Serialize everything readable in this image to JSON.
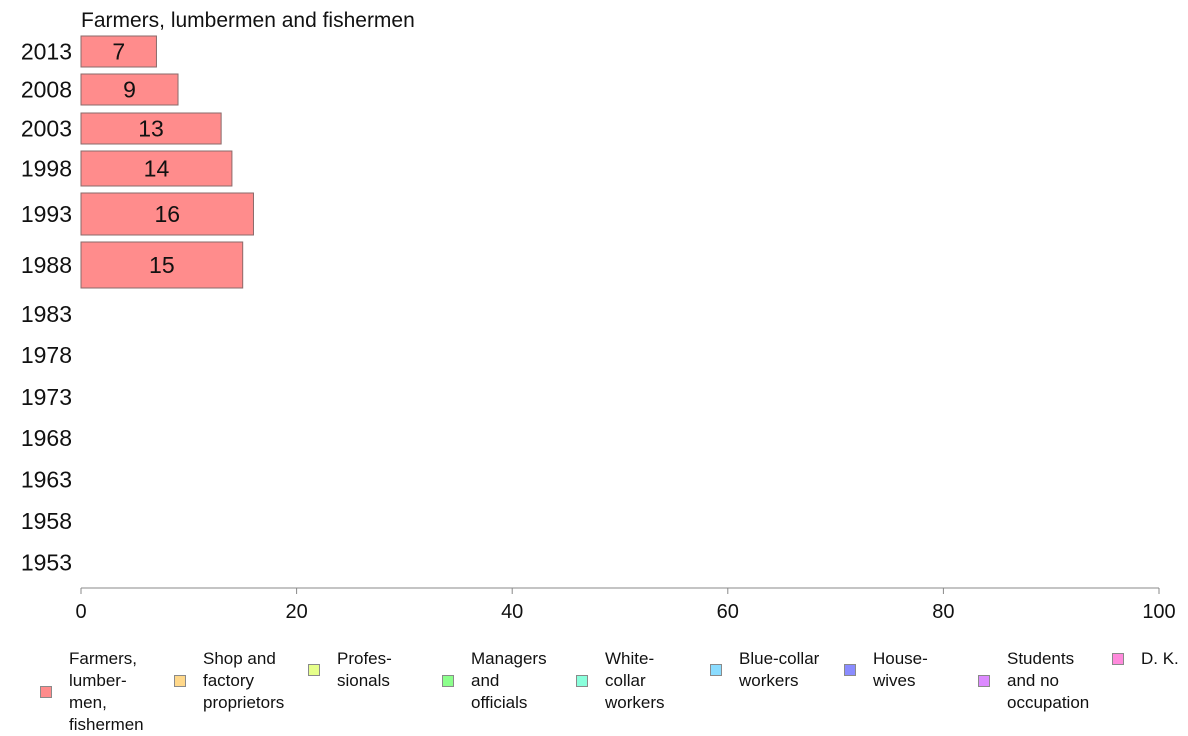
{
  "chart_data": {
    "type": "bar",
    "orientation": "horizontal",
    "title": "Farmers, lumbermen and fishermen",
    "xlim": [
      0,
      100
    ],
    "x_ticks": [
      "0",
      "20",
      "40",
      "60",
      "80",
      "100"
    ],
    "categories": [
      "2013",
      "2008",
      "2003",
      "1998",
      "1993",
      "1988",
      "1983",
      "1978",
      "1973",
      "1968",
      "1963",
      "1958",
      "1953"
    ],
    "series": [
      {
        "name": "Farmers, lumbermen, fishermen",
        "color": "#ff8c8c",
        "values": [
          7,
          9,
          13,
          14,
          16,
          15,
          null,
          null,
          null,
          null,
          null,
          null,
          null
        ],
        "value_labels": [
          "7",
          "9",
          "13",
          "14",
          "16",
          "15",
          "",
          "",
          "",
          "",
          "",
          "",
          ""
        ]
      }
    ],
    "grid": false,
    "legend_position": "bottom"
  },
  "legend": [
    {
      "label": "Farmers,\nlumber-\nmen,\nfishermen",
      "color": "#ff8c8c"
    },
    {
      "label": "Shop and\nfactory\nproprietors",
      "color": "#ffd88a"
    },
    {
      "label": "Profes-\nsionals",
      "color": "#e6ff8a"
    },
    {
      "label": "Managers\nand\nofficials",
      "color": "#8cff8c"
    },
    {
      "label": "White-\ncollar\nworkers",
      "color": "#8affdc"
    },
    {
      "label": "Blue-collar\nworkers",
      "color": "#8adcff"
    },
    {
      "label": "House-\nwives",
      "color": "#8a8cff"
    },
    {
      "label": "Students\nand no\noccupation",
      "color": "#dc8aff"
    },
    {
      "label": "D. K.",
      "color": "#ff8adc"
    }
  ]
}
